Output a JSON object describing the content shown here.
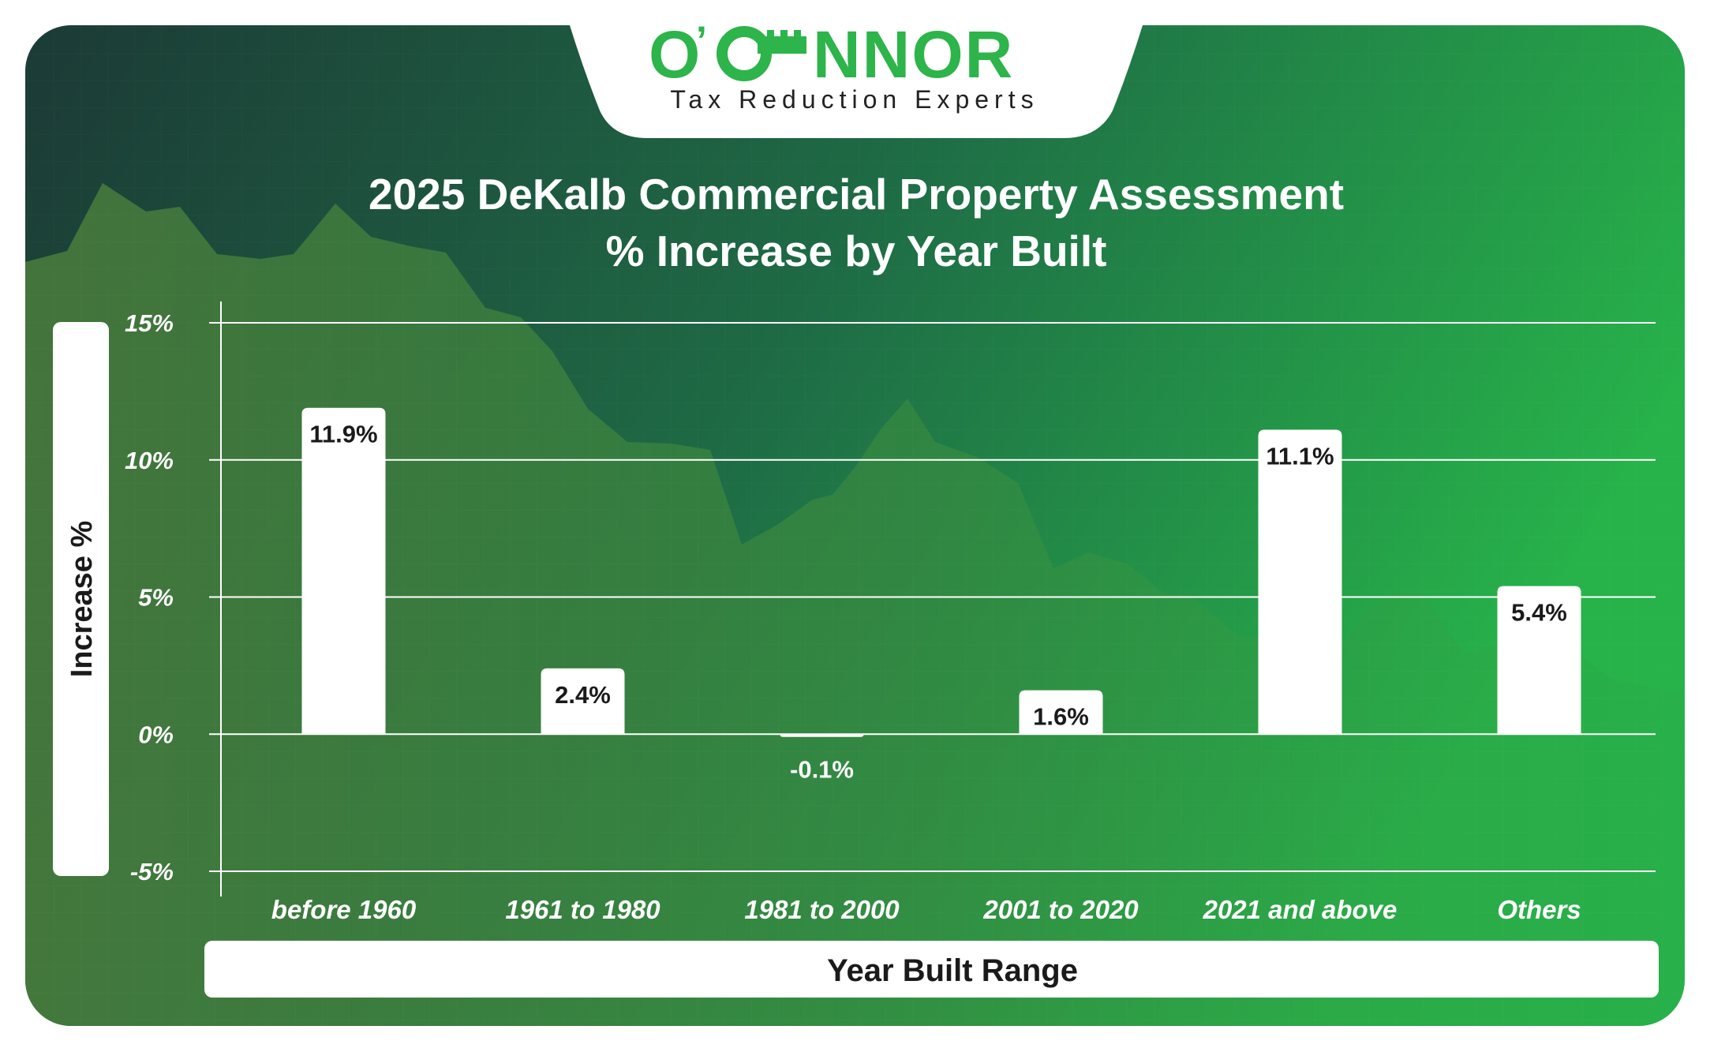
{
  "brand": {
    "name_o": "O",
    "name_rest": "NNOR",
    "tagline": "Tax Reduction Experts",
    "color": "#2DB44A"
  },
  "colors": {
    "bg_dark": "#1C3A36",
    "bg_mid": "#1E6A45",
    "bg_light": "#27B24A",
    "mountain": "#3F7A3C",
    "bar": "#FFFFFF",
    "value_text": "#1A1A1A",
    "grid": "#FFFFFF"
  },
  "chart_data": {
    "type": "bar",
    "title": "2025 DeKalb Commercial Property Assessment",
    "subtitle": "% Increase by Year Built",
    "xlabel": "Year Built Range",
    "ylabel": "Increase %",
    "categories": [
      "before 1960",
      "1961 to 1980",
      "1981 to 2000",
      "2001 to 2020",
      "2021 and above",
      "Others"
    ],
    "values": [
      11.9,
      2.4,
      -0.1,
      1.6,
      11.1,
      5.4
    ],
    "value_labels": [
      "11.9%",
      "2.4%",
      "-0.1%",
      "1.6%",
      "11.1%",
      "5.4%"
    ],
    "ylim": [
      -5,
      15
    ],
    "yticks": [
      15,
      10,
      5,
      0,
      -5
    ],
    "ytick_labels": [
      "15%",
      "10%",
      "5%",
      "0%",
      "-5%"
    ],
    "grid": true,
    "legend": "none"
  }
}
